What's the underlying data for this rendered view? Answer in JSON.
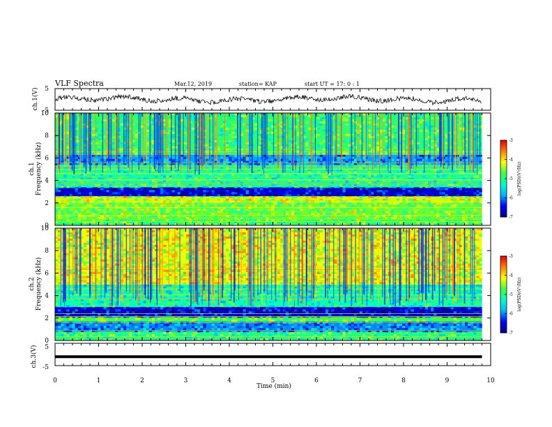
{
  "header": {
    "title": "VLF Spectra",
    "date": "Mar.12, 2019",
    "station": "station= KAP",
    "start_ut": "start  UT =   17: 0  : 1"
  },
  "panels": {
    "ch1_wave": {
      "ylabel": "ch.1(V)",
      "ytick_top": "5",
      "ytick_bottom": "-5"
    },
    "ch1_spec": {
      "ylabel_line1": "ch.1",
      "ylabel_line2": "Frequency (kHz)",
      "yticks": [
        "0",
        "2",
        "4",
        "6",
        "8",
        "10"
      ]
    },
    "ch2_spec": {
      "ylabel_line1": "ch.2",
      "ylabel_line2": "Frequency (kHz)",
      "yticks": [
        "0",
        "2",
        "4",
        "6",
        "8",
        "10"
      ]
    },
    "ch3_wave": {
      "ylabel": "ch.3(V)",
      "ytick_top": "5",
      "ytick_bottom": "-5"
    },
    "colorbar": {
      "label": "log(PSD)(V²/Hz)",
      "ticks": [
        "-3",
        "-4",
        "-5",
        "-6",
        "-7"
      ]
    }
  },
  "xaxis": {
    "label": "Time  (min)",
    "ticks": [
      "0",
      "1",
      "2",
      "3",
      "4",
      "5",
      "6",
      "7",
      "8",
      "9",
      "10"
    ]
  },
  "colors": {
    "spectrum_scale": [
      "#00007f",
      "#0000ff",
      "#00b4ff",
      "#00ffc8",
      "#40ff40",
      "#ffff00",
      "#ff8000",
      "#e00000"
    ]
  },
  "chart_data": {
    "type": "heatmap",
    "title": "VLF Spectra",
    "xlabel": "Time  (min)",
    "xlim": [
      0,
      10
    ],
    "data_extent_min": [
      0,
      9.8
    ],
    "waveform_ylim": [
      -5,
      5
    ],
    "ch3_level_V": -1.0,
    "spectrogram_ylim_kHz": [
      0,
      10
    ],
    "colorbar_range_logPSD": [
      -7,
      -3
    ],
    "ch1_band_structure": [
      {
        "band_kHz": [
          0,
          0.5
        ],
        "mean_logPSD": -4.8
      },
      {
        "band_kHz": [
          0.5,
          2.0
        ],
        "mean_logPSD": -4.6
      },
      {
        "band_kHz": [
          2.0,
          2.6
        ],
        "mean_logPSD": -4.3
      },
      {
        "band_kHz": [
          2.6,
          3.4
        ],
        "mean_logPSD": -6.6
      },
      {
        "band_kHz": [
          3.4,
          5.4
        ],
        "mean_logPSD": -5.1
      },
      {
        "band_kHz": [
          5.4,
          6.3
        ],
        "mean_logPSD": -5.9
      },
      {
        "band_kHz": [
          6.3,
          10
        ],
        "mean_logPSD": -4.9
      }
    ],
    "ch2_band_structure": [
      {
        "band_kHz": [
          0,
          0.8
        ],
        "mean_logPSD": -5.0
      },
      {
        "band_kHz": [
          0.8,
          1.7
        ],
        "mean_logPSD": -6.0
      },
      {
        "band_kHz": [
          1.7,
          2.1
        ],
        "mean_logPSD": -4.7
      },
      {
        "band_kHz": [
          2.1,
          3.0
        ],
        "mean_logPSD": -6.6
      },
      {
        "band_kHz": [
          3.0,
          5.0
        ],
        "mean_logPSD": -5.2
      },
      {
        "band_kHz": [
          5.0,
          10
        ],
        "mean_logPSD": -4.2
      }
    ]
  }
}
